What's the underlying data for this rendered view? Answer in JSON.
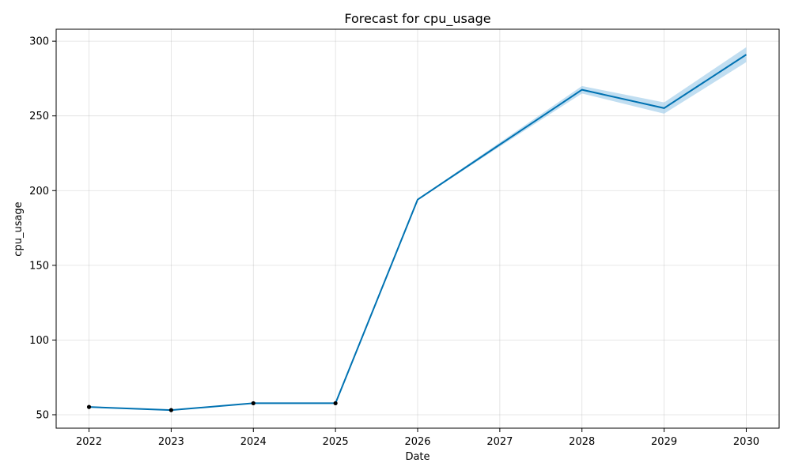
{
  "chart_data": {
    "type": "line",
    "title": "Forecast for cpu_usage",
    "xlabel": "Date",
    "ylabel": "cpu_usage",
    "xlim": [
      2021.6,
      2030.4
    ],
    "ylim": [
      41,
      308
    ],
    "x_ticks": [
      "2022",
      "2023",
      "2024",
      "2025",
      "2026",
      "2027",
      "2028",
      "2029",
      "2030"
    ],
    "y_ticks": [
      50,
      100,
      150,
      200,
      250,
      300
    ],
    "grid": true,
    "colors": {
      "forecast_line": "#0072b2",
      "uncertainty_band": "#8ec3e6",
      "observed_points": "#000000"
    },
    "series": [
      {
        "role": "forecast",
        "x": [
          2022,
          2023,
          2024,
          2025,
          2026,
          2027,
          2028,
          2029,
          2030
        ],
        "y": [
          55.2,
          53.1,
          57.7,
          57.7,
          194.0,
          230.8,
          267.5,
          255.2,
          291.0
        ],
        "y_lower": [
          55.2,
          53.1,
          57.7,
          57.7,
          193.6,
          229.5,
          265.0,
          251.5,
          286.0
        ],
        "y_upper": [
          55.2,
          53.1,
          57.7,
          57.7,
          194.4,
          232.2,
          270.0,
          259.0,
          296.0
        ]
      },
      {
        "role": "observed",
        "x": [
          2022,
          2023,
          2024,
          2025
        ],
        "y": [
          55.2,
          53.1,
          57.7,
          57.7
        ]
      }
    ]
  }
}
